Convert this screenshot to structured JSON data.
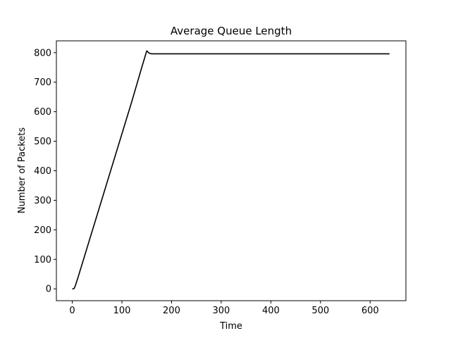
{
  "chart_data": {
    "type": "line",
    "title": "Average Queue Length",
    "xlabel": "Time",
    "ylabel": "Number of Packets",
    "xlim": [
      -32,
      672
    ],
    "ylim": [
      -40,
      840
    ],
    "xticks": [
      0,
      100,
      200,
      300,
      400,
      500,
      600
    ],
    "yticks": [
      0,
      100,
      200,
      300,
      400,
      500,
      600,
      700,
      800
    ],
    "grid": false,
    "series": [
      {
        "color": "#000000",
        "x": [
          0,
          2,
          4,
          6,
          10,
          20,
          40,
          60,
          80,
          100,
          120,
          140,
          148,
          150,
          152,
          155,
          160,
          170,
          200,
          300,
          400,
          500,
          600,
          639
        ],
        "y": [
          0,
          0,
          2,
          10,
          30,
          85,
          195,
          305,
          415,
          525,
          635,
          750,
          795,
          806,
          803,
          798,
          796,
          796,
          796,
          796,
          796,
          796,
          796,
          796
        ]
      }
    ]
  }
}
